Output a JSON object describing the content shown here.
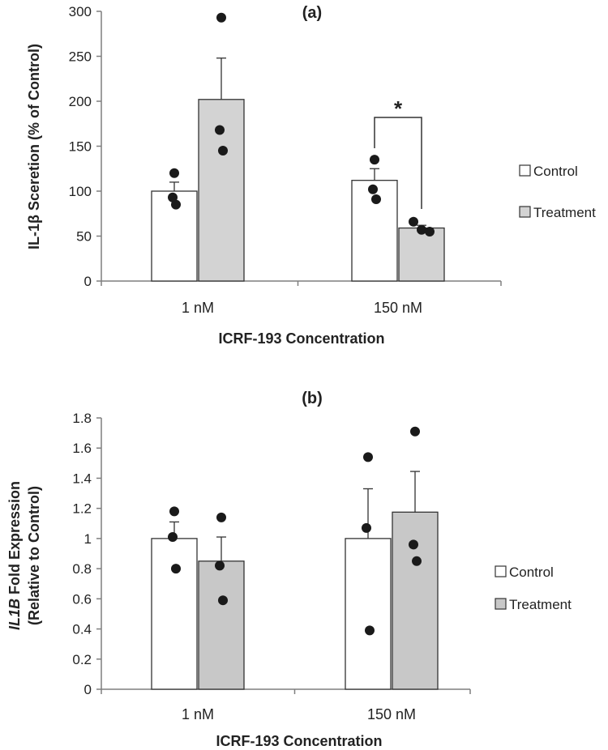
{
  "chart_data": [
    {
      "type": "bar",
      "panel_label": "(a)",
      "title": "",
      "xlabel": "ICRF-193 Concentration",
      "ylabel": "IL-1β Sceretion (% of Control)",
      "ylabel_parts": [],
      "categories": [
        "1 nM",
        "150 nM"
      ],
      "ylim": [
        0,
        300
      ],
      "yticks": [
        "0",
        "50",
        "100",
        "150",
        "200",
        "250",
        "300"
      ],
      "ytick_values": [
        0,
        50,
        100,
        150,
        200,
        250,
        300
      ],
      "grid": false,
      "legend_position": "right",
      "series": [
        {
          "name": "Control",
          "color": "#ffffff",
          "values": [
            100,
            112
          ],
          "errors": [
            10,
            13
          ],
          "points": [
            [
              120,
              93,
              85
            ],
            [
              135,
              102,
              91
            ]
          ]
        },
        {
          "name": "Treatment",
          "color": "#d3d3d3",
          "values": [
            202,
            59
          ],
          "errors": [
            46,
            3
          ],
          "points": [
            [
              293,
              168,
              145
            ],
            [
              66,
              57,
              55
            ]
          ]
        }
      ],
      "annotations": [
        {
          "text": "*",
          "category": "150 nM",
          "bracket": true
        }
      ]
    },
    {
      "type": "bar",
      "panel_label": "(b)",
      "title": "",
      "xlabel": "ICRF-193 Concentration",
      "ylabel": "",
      "ylabel_parts": [
        "IL1B",
        " Fold Expression",
        "(Relative to Control)"
      ],
      "categories": [
        "1 nM",
        "150 nM"
      ],
      "ylim": [
        0,
        1.8
      ],
      "yticks": [
        "0",
        "0.2",
        "0.4",
        "0.6",
        "0.8",
        "1",
        "1.2",
        "1.4",
        "1.6",
        "1.8"
      ],
      "ytick_values": [
        0,
        0.2,
        0.4,
        0.6,
        0.8,
        1.0,
        1.2,
        1.4,
        1.6,
        1.8
      ],
      "grid": false,
      "legend_position": "right",
      "series": [
        {
          "name": "Control",
          "color": "#ffffff",
          "values": [
            1.0,
            1.0
          ],
          "errors": [
            0.11,
            0.33
          ],
          "points": [
            [
              1.18,
              1.01,
              0.8
            ],
            [
              1.54,
              1.07,
              0.39
            ]
          ]
        },
        {
          "name": "Treatment",
          "color": "#c8c8c8",
          "values": [
            0.85,
            1.175
          ],
          "errors": [
            0.16,
            0.27
          ],
          "points": [
            [
              1.14,
              0.82,
              0.59
            ],
            [
              1.71,
              0.96,
              0.85
            ]
          ]
        }
      ],
      "annotations": []
    }
  ]
}
